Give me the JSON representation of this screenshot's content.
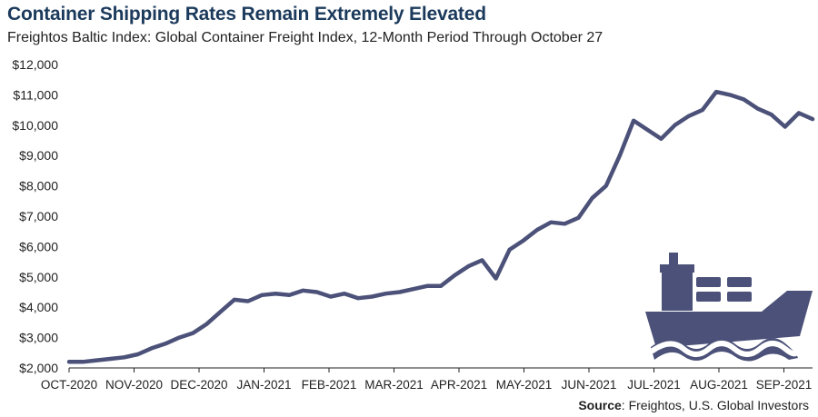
{
  "header": {
    "title": "Container Shipping Rates Remain Extremely Elevated",
    "subtitle": "Freightos Baltic Index: Global Container Freight Index, 12-Month Period Through October 27"
  },
  "footer": {
    "source_label": "Source",
    "source_text": ": Freightos, U.S. Global Investors"
  },
  "colors": {
    "line": "#4b5178",
    "icon": "#4b5178",
    "axis": "#222222"
  },
  "icon": {
    "name": "cargo-ship-icon"
  },
  "chart_data": {
    "type": "line",
    "title": "Container Shipping Rates Remain Extremely Elevated",
    "xlabel": "",
    "ylabel": "",
    "ylim": [
      2000,
      12000
    ],
    "yticks": [
      2000,
      3000,
      4000,
      5000,
      6000,
      7000,
      8000,
      9000,
      10000,
      11000,
      12000
    ],
    "ytick_labels": [
      "$2,000",
      "$3,000",
      "$4,000",
      "$5,000",
      "$6,000",
      "$7,000",
      "$8,000",
      "$9,000",
      "$10,000",
      "$11,000",
      "$12,000"
    ],
    "xtick_labels": [
      "OCT-2020",
      "NOV-2020",
      "DEC-2020",
      "JAN-2021",
      "FEB-2021",
      "MAR-2021",
      "APR-2021",
      "MAY-2021",
      "JUN-2021",
      "JUL-2021",
      "AUG-2021",
      "SEP-2021"
    ],
    "grid": false,
    "series": [
      {
        "values": [
          2200,
          2200,
          2250,
          2300,
          2350,
          2450,
          2650,
          2800,
          3000,
          3150,
          3450,
          3850,
          4250,
          4200,
          4400,
          4450,
          4400,
          4550,
          4500,
          4350,
          4450,
          4300,
          4350,
          4450,
          4500,
          4600,
          4700,
          4700,
          5050,
          5350,
          5550,
          4950,
          5900,
          6200,
          6550,
          6800,
          6750,
          6950,
          7600,
          8000,
          9000,
          10150,
          9850,
          9550,
          10000,
          10300,
          10500,
          11100,
          11000,
          10850,
          10550,
          10350,
          9950,
          10400,
          10200
        ]
      }
    ]
  }
}
